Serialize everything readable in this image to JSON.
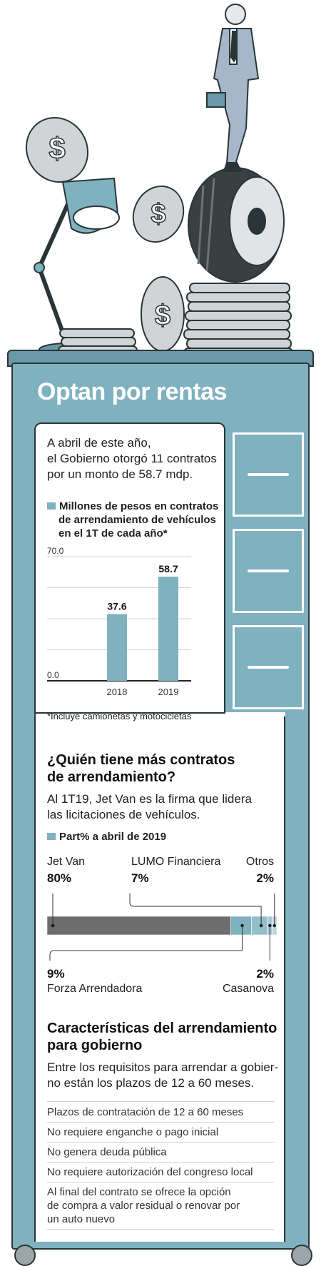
{
  "title": "Optan por rentas",
  "intro": {
    "line1": "A abril de este año,",
    "line2": "el Gobierno otorgó 11 contratos",
    "line3": "por un monto de 58.7 mdp."
  },
  "bar_chart": {
    "legend_line1": "Millones de pesos en contratos",
    "legend_line2": "de arrendamiento de vehículos",
    "legend_line3": "en el 1T de cada año*",
    "footnote": "*Incluye camionetas y motocicletas",
    "accent": "#7fb1bf"
  },
  "share_section": {
    "heading_line1": "¿Quién tiene más contratos",
    "heading_line2": "de arrendamiento?",
    "text_line1": "Al 1T19, Jet Van es la firma que lidera",
    "text_line2": "las licitaciones de vehículos.",
    "legend": "Part% a abril de 2019"
  },
  "features": {
    "heading_line1": "Características del arrendamiento",
    "heading_line2": "para gobierno",
    "text_line1": "Entre los requisitos para arrendar a gobier-",
    "text_line2": "no están los plazos de 12 a 60 meses.",
    "items": [
      "Plazos de contratación de 12 a 60 meses",
      "No requiere enganche o pago inicial",
      "No genera deuda pública",
      "No requiere autorización del congreso local"
    ],
    "last_item_line1": "Al final del contrato se ofrece la opción",
    "last_item_line2": "de compra a valor residual o renovar por",
    "last_item_line3": "un auto nuevo"
  },
  "icons": [
    "coin-dollar-icon",
    "desk-lamp-icon",
    "tire-icon",
    "businessman-icon"
  ],
  "chart_data": [
    {
      "type": "bar",
      "categories": [
        "2018",
        "2019"
      ],
      "values": [
        37.6,
        58.7
      ],
      "value_labels": [
        "37.6",
        "58.7"
      ],
      "tick_labels": [
        "70.0",
        "0.0"
      ],
      "ylim": [
        0,
        70
      ],
      "grid": true,
      "color": "#7fb1bf"
    },
    {
      "type": "bar",
      "orientation": "horizontal-stacked",
      "series": [
        {
          "name": "Jet Van",
          "value": 80,
          "label": "80%",
          "color": "#6d6d6d"
        },
        {
          "name": "Forza Arrendadora",
          "value": 9,
          "label": "9%",
          "color": "#7fb1bf"
        },
        {
          "name": "LUMO Financiera",
          "value": 7,
          "label": "7%",
          "color": "#93bfcb"
        },
        {
          "name": "Casanova",
          "value": 2,
          "label": "2%",
          "color": "#a7cad4"
        },
        {
          "name": "Otros",
          "value": 2,
          "label": "2%",
          "color": "#bcd6de"
        }
      ]
    }
  ]
}
